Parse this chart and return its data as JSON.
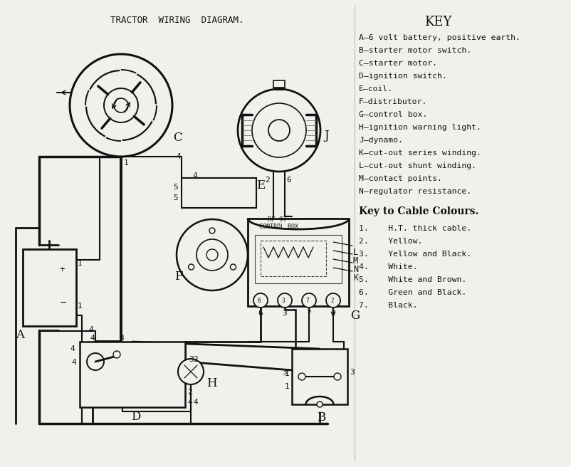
{
  "title": "TRACTOR  WIRING  DIAGRAM.",
  "bg_color": "#f0f0ec",
  "key_title": "KEY",
  "key_items": [
    "A—6 volt battery, positive earth.",
    "B—starter motor switch.",
    "C—starter motor.",
    "D—ignition switch.",
    "E—coil.",
    "F—distributor.",
    "G—control box.",
    "H—ignition warning light.",
    "J—dynamo.",
    "K—cut-out series winding.",
    "L—cut-out shunt winding.",
    "M—contact points.",
    "N—regulator resistance."
  ],
  "cable_title": "Key to Cable Colours.",
  "cable_items": [
    "1.    H.T. thick cable.",
    "2.    Yellow.",
    "3.    Yellow and Black.",
    "4.    White.",
    "5.    White and Brown.",
    "6.    Green and Black.",
    "7.    Black."
  ],
  "line_color": "#111111",
  "text_color": "#111111"
}
